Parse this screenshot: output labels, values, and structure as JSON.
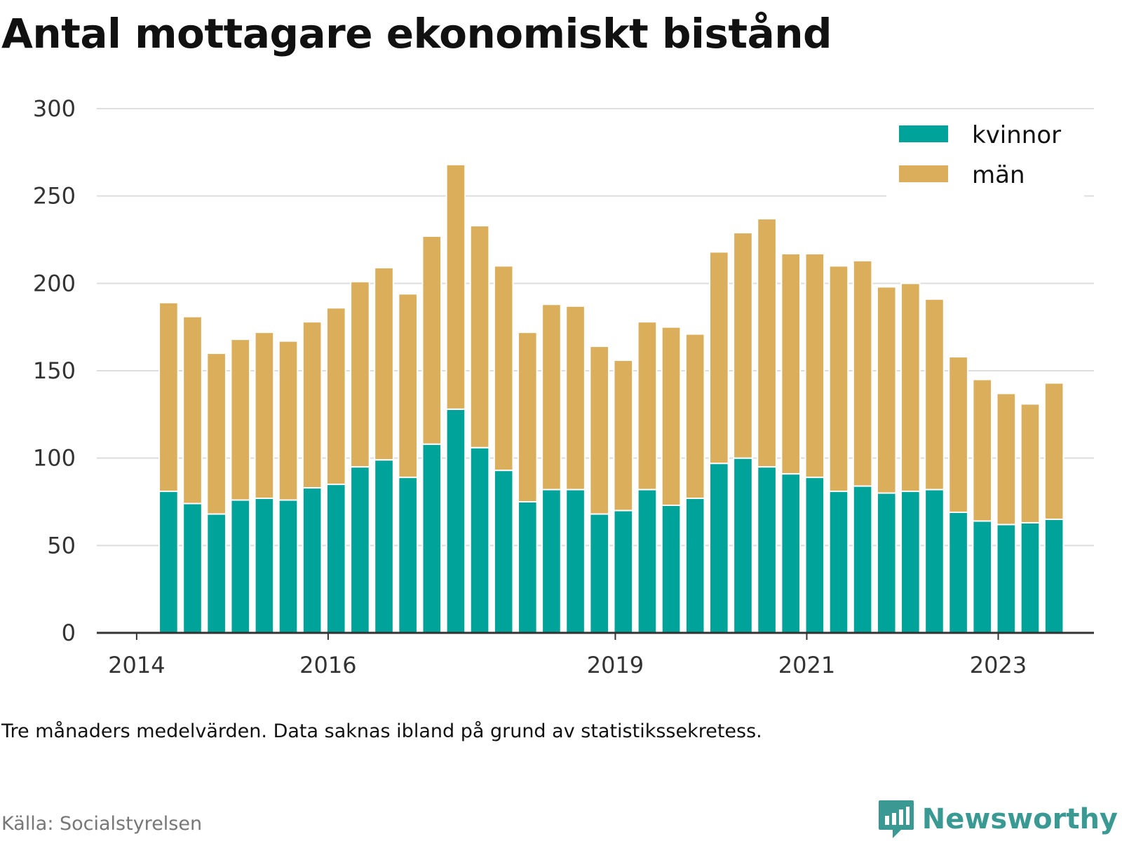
{
  "title": "Antal mottagare ekonomiskt bistånd",
  "note": "Tre månaders medelvärden. Data saknas ibland på grund av statistikssekretess.",
  "source": "Källa: Socialstyrelsen",
  "brand": {
    "name": "Newsworthy",
    "icon": "newsworthy-logo-icon",
    "color": "#3a9a93"
  },
  "colors": {
    "kvinnor": "#00a39a",
    "man": "#dbae5c",
    "grid": "#dddddd",
    "axis": "#333333"
  },
  "chart_data": {
    "type": "bar",
    "stacked": true,
    "x": [
      "2014-05",
      "2014-08",
      "2014-11",
      "2015-02",
      "2015-05",
      "2015-08",
      "2015-11",
      "2016-02",
      "2016-05",
      "2016-08",
      "2016-11",
      "2017-02",
      "2017-05",
      "2017-08",
      "2017-11",
      "2018-02",
      "2018-05",
      "2018-08",
      "2018-11",
      "2019-02",
      "2019-05",
      "2019-08",
      "2019-11",
      "2020-02",
      "2020-05",
      "2020-08",
      "2020-11",
      "2021-02",
      "2021-05",
      "2021-08",
      "2021-11",
      "2022-02",
      "2022-05",
      "2022-08",
      "2022-11",
      "2023-02",
      "2023-05",
      "2023-08"
    ],
    "series": [
      {
        "name": "kvinnor",
        "color": "#00a39a",
        "values": [
          81,
          74,
          68,
          76,
          77,
          76,
          83,
          85,
          95,
          99,
          89,
          108,
          128,
          106,
          93,
          75,
          82,
          82,
          68,
          70,
          82,
          73,
          77,
          97,
          100,
          95,
          91,
          89,
          81,
          84,
          80,
          81,
          82,
          69,
          64,
          62,
          63,
          65
        ]
      },
      {
        "name": "män",
        "color": "#dbae5c",
        "values": [
          108,
          107,
          92,
          92,
          95,
          91,
          95,
          101,
          106,
          110,
          105,
          119,
          140,
          127,
          117,
          97,
          106,
          105,
          96,
          86,
          96,
          102,
          94,
          121,
          129,
          142,
          126,
          128,
          129,
          129,
          118,
          119,
          109,
          89,
          81,
          75,
          68,
          78
        ]
      }
    ],
    "xticks": [
      {
        "label": "2014",
        "value": "2014-01"
      },
      {
        "label": "2016",
        "value": "2016-01"
      },
      {
        "label": "2019",
        "value": "2019-01"
      },
      {
        "label": "2021",
        "value": "2021-01"
      },
      {
        "label": "2023",
        "value": "2023-01"
      }
    ],
    "xlim": [
      "2013-08",
      "2024-01"
    ],
    "ylim": [
      0,
      300
    ],
    "yticks": [
      0,
      50,
      100,
      150,
      200,
      250,
      300
    ],
    "grid": true,
    "legend": "top-right",
    "title": "Antal mottagare ekonomiskt bistånd",
    "xlabel": "",
    "ylabel": ""
  }
}
